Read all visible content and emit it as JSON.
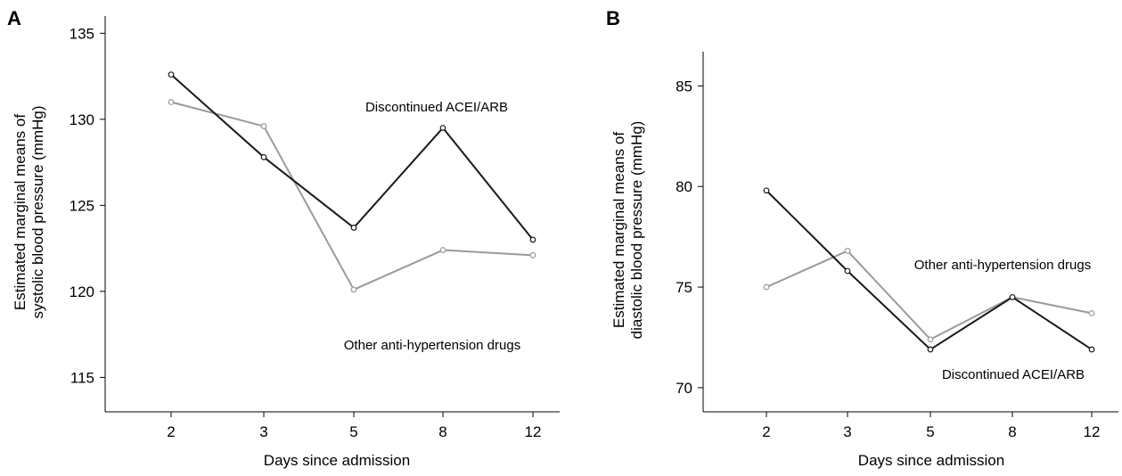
{
  "chart_data": [
    {
      "panel_label": "A",
      "type": "line",
      "categories": [
        "2",
        "3",
        "5",
        "8",
        "12"
      ],
      "xlabel": "Days since admission",
      "ylabel": [
        "Estimated marginal means of",
        "systolic blood pressure (mmHg)"
      ],
      "ylim": [
        113,
        136
      ],
      "yticks": [
        "115",
        "120",
        "125",
        "130",
        "135"
      ],
      "grid": false,
      "series": [
        {
          "name": "Discontinued ACEI/ARB",
          "color": "#1a1a1a",
          "values": [
            132.6,
            127.8,
            123.7,
            129.5,
            123.0
          ]
        },
        {
          "name": "Other anti-hypertension drugs",
          "color": "#9a9a9a",
          "values": [
            131.0,
            129.6,
            120.1,
            122.4,
            122.1
          ]
        }
      ]
    },
    {
      "panel_label": "B",
      "type": "line",
      "categories": [
        "2",
        "3",
        "5",
        "8",
        "12"
      ],
      "xlabel": "Days since admission",
      "ylabel": [
        "Estimated marginal means of",
        "diastolic blood pressure (mmHg)"
      ],
      "ylim": [
        68.8,
        86.7
      ],
      "yticks": [
        "70",
        "75",
        "80",
        "85"
      ],
      "grid": false,
      "series": [
        {
          "name": "Discontinued ACEI/ARB",
          "color": "#1a1a1a",
          "values": [
            79.8,
            75.8,
            71.9,
            74.5,
            71.9
          ]
        },
        {
          "name": "Other anti-hypertension drugs",
          "color": "#9a9a9a",
          "values": [
            75.0,
            76.8,
            72.4,
            74.5,
            73.7
          ]
        }
      ]
    }
  ]
}
